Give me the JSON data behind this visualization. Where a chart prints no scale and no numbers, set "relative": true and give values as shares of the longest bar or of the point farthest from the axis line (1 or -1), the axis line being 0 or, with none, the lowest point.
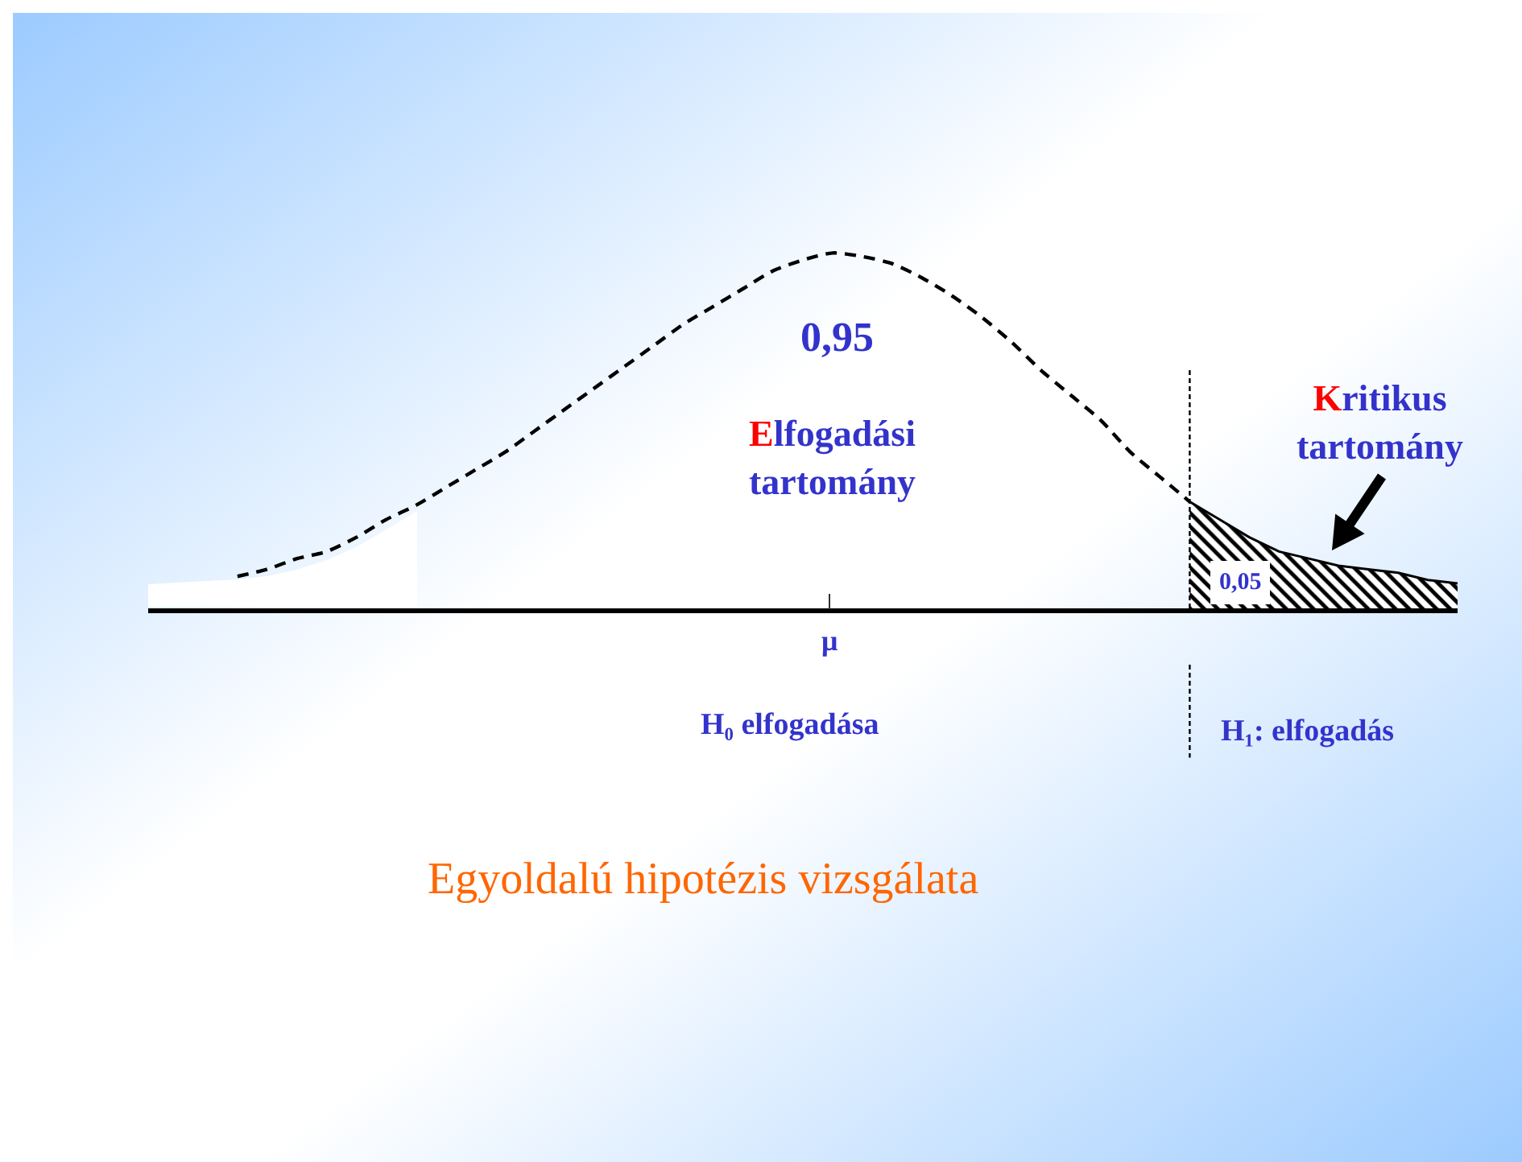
{
  "chart_data": {
    "type": "line",
    "title": "Egyoldalú hipotézis vizsgálata",
    "relative": true,
    "categories": [
      null,
      null,
      null,
      null,
      null,
      null,
      null,
      null,
      null,
      null,
      null,
      null,
      null,
      null,
      null,
      null,
      null,
      null,
      null,
      null,
      null,
      null,
      null,
      null,
      null,
      null,
      null,
      null,
      null,
      null,
      null,
      null,
      null,
      null,
      null,
      null,
      null,
      null,
      null,
      null,
      null,
      null,
      null,
      null,
      null
    ],
    "series": [
      {
        "line_style": "dashed",
        "color": "#000000",
        "values": [
          null,
          null,
          null,
          0.09,
          0.11,
          0.14,
          0.16,
          0.2,
          0.25,
          0.29,
          0.34,
          0.39,
          0.44,
          0.5,
          0.56,
          0.62,
          0.68,
          0.74,
          0.8,
          0.85,
          0.9,
          0.95,
          0.98,
          1,
          0.99,
          0.97,
          0.93,
          0.88,
          0.82,
          0.75,
          0.67,
          0.6,
          0.53,
          0.44,
          0.37,
          0.3,
          null,
          null,
          null,
          null,
          null,
          null,
          null,
          null,
          null
        ]
      },
      {
        "type": "area",
        "color": "#000000",
        "values": [
          null,
          null,
          null,
          null,
          null,
          null,
          null,
          null,
          null,
          null,
          null,
          null,
          null,
          null,
          null,
          null,
          null,
          null,
          null,
          null,
          null,
          null,
          null,
          null,
          null,
          null,
          null,
          null,
          null,
          null,
          null,
          null,
          null,
          null,
          null,
          0.3,
          0.25,
          0.2,
          0.16,
          0.14,
          0.12,
          0.11,
          0.1,
          0.08,
          0.07
        ]
      }
    ],
    "annotations": [
      "0,95",
      "Elfogadási\ntartomány",
      "Kritikus\ntartomány",
      "0,05",
      "H₀ elfogadása",
      "H₁: elfogadás",
      "μ"
    ]
  }
}
